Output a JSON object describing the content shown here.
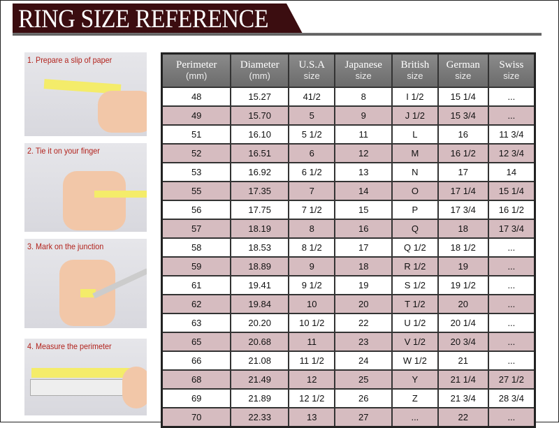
{
  "title": "RING SIZE REFERENCE",
  "steps": [
    {
      "label": "1. Prepare a slip of paper"
    },
    {
      "label": "2. Tie it on your finger"
    },
    {
      "label": "3. Mark on the junction"
    },
    {
      "label": "4. Measure the perimeter"
    }
  ],
  "table": {
    "headers": [
      {
        "name": "Perimeter",
        "sub": "(mm)"
      },
      {
        "name": "Diameter",
        "sub": "(mm)"
      },
      {
        "name": "U.S.A",
        "sub": "size"
      },
      {
        "name": "Japanese",
        "sub": "size"
      },
      {
        "name": "British",
        "sub": "size"
      },
      {
        "name": "German",
        "sub": "size"
      },
      {
        "name": "Swiss",
        "sub": "size"
      }
    ],
    "rows": [
      [
        "48",
        "15.27",
        "41/2",
        "8",
        "I 1/2",
        "15 1/4",
        "..."
      ],
      [
        "49",
        "15.70",
        "5",
        "9",
        "J 1/2",
        "15 3/4",
        "..."
      ],
      [
        "51",
        "16.10",
        "5 1/2",
        "11",
        "L",
        "16",
        "11 3/4"
      ],
      [
        "52",
        "16.51",
        "6",
        "12",
        "M",
        "16 1/2",
        "12 3/4"
      ],
      [
        "53",
        "16.92",
        "6 1/2",
        "13",
        "N",
        "17",
        "14"
      ],
      [
        "55",
        "17.35",
        "7",
        "14",
        "O",
        "17 1/4",
        "15 1/4"
      ],
      [
        "56",
        "17.75",
        "7 1/2",
        "15",
        "P",
        "17 3/4",
        "16 1/2"
      ],
      [
        "57",
        "18.19",
        "8",
        "16",
        "Q",
        "18",
        "17 3/4"
      ],
      [
        "58",
        "18.53",
        "8 1/2",
        "17",
        "Q  1/2",
        "18 1/2",
        "..."
      ],
      [
        "59",
        "18.89",
        "9",
        "18",
        "R 1/2",
        "19",
        "..."
      ],
      [
        "61",
        "19.41",
        "9 1/2",
        "19",
        "S 1/2",
        "19 1/2",
        "..."
      ],
      [
        "62",
        "19.84",
        "10",
        "20",
        "T 1/2",
        "20",
        "..."
      ],
      [
        "63",
        "20.20",
        "10 1/2",
        "22",
        "U 1/2",
        "20 1/4",
        "..."
      ],
      [
        "65",
        "20.68",
        "11",
        "23",
        "V 1/2",
        "20 3/4",
        "..."
      ],
      [
        "66",
        "21.08",
        "11 1/2",
        "24",
        "W 1/2",
        "21",
        "..."
      ],
      [
        "68",
        "21.49",
        "12",
        "25",
        "Y",
        "21 1/4",
        "27 1/2"
      ],
      [
        "69",
        "21.89",
        "12 1/2",
        "26",
        "Z",
        "21 3/4",
        "28 3/4"
      ],
      [
        "70",
        "22.33",
        "13",
        "27",
        "...",
        "22",
        "..."
      ]
    ]
  }
}
